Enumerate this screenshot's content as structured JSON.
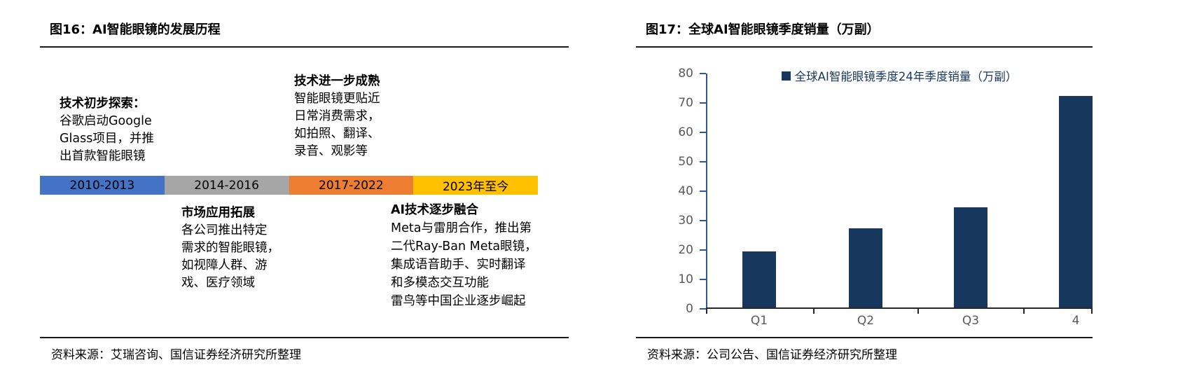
{
  "left_panel": {
    "title": "图16：AI智能眼镜的发展历程",
    "source": "资料来源：艾瑞咨询、国信证券经济研究所整理",
    "timeline": {
      "segments": [
        {
          "label": "2010-2013",
          "color": "#4472C4"
        },
        {
          "label": "2014-2016",
          "color": "#A6A6A6"
        },
        {
          "label": "2017-2022",
          "color": "#ED7D31"
        },
        {
          "label": "2023年至今",
          "color": "#FFC000"
        }
      ]
    },
    "blocks": [
      {
        "heading": "技术初步探索：",
        "lines": [
          "谷歌启动Google",
          "Glass项目，并推",
          "出首款智能眼镜"
        ]
      },
      {
        "heading": "技术进一步成熟",
        "lines": [
          "智能眼镜更贴近",
          "日常消费需求，",
          "如拍照、翻译、",
          "录音、观影等"
        ]
      },
      {
        "heading": "市场应用拓展",
        "lines": [
          "各公司推出特定",
          "需求的智能眼镜，",
          "如视障人群、游",
          "戏、医疗领域"
        ]
      },
      {
        "heading": "AI技术逐步融合",
        "lines": [
          "Meta与雷朋合作，推出第",
          "二代Ray-Ban Meta眼镜，",
          "集成语音助手、实时翻译",
          "和多模态交互功能",
          "雷鸟等中国企业逐步崛起"
        ]
      }
    ]
  },
  "right_panel": {
    "title": "图17：全球AI智能眼镜季度销量（万副）",
    "source": "资料来源：公司公告、国信证券经济研究所整理"
  },
  "chart_data": [
    {
      "type": "table",
      "title": "AI智能眼镜的发展历程",
      "rows": [
        {
          "period": "2010-2013",
          "stage": "技术初步探索：",
          "detail": "谷歌启动Google Glass项目，并推出首款智能眼镜"
        },
        {
          "period": "2014-2016",
          "stage": "市场应用拓展",
          "detail": "各公司推出特定需求的智能眼镜，如视障人群、游戏、医疗领域"
        },
        {
          "period": "2017-2022",
          "stage": "技术进一步成熟",
          "detail": "智能眼镜更贴近日常消费需求，如拍照、翻译、录音、观影等"
        },
        {
          "period": "2023年至今",
          "stage": "AI技术逐步融合",
          "detail": "Meta与雷朋合作，推出第二代Ray-Ban Meta眼镜，集成语音助手、实时翻译和多模态交互功能 雷鸟等中国企业逐步崛起"
        }
      ]
    },
    {
      "type": "bar",
      "title": "全球AI智能眼镜季度销量（万副）",
      "legend": [
        "全球AI智能眼镜季度24年季度销量（万副）"
      ],
      "legend_position": "top",
      "categories": [
        "Q1",
        "Q2",
        "Q3",
        "4"
      ],
      "values": [
        19,
        27,
        34,
        72
      ],
      "xlabel": "",
      "ylabel": "",
      "ylim": [
        0,
        80
      ],
      "yticks": [
        0,
        10,
        20,
        30,
        40,
        50,
        60,
        70,
        80
      ],
      "grid": false,
      "bar_color": "#17375E",
      "axis_color": "#2F5597",
      "tick_label_color": "#595959"
    }
  ]
}
